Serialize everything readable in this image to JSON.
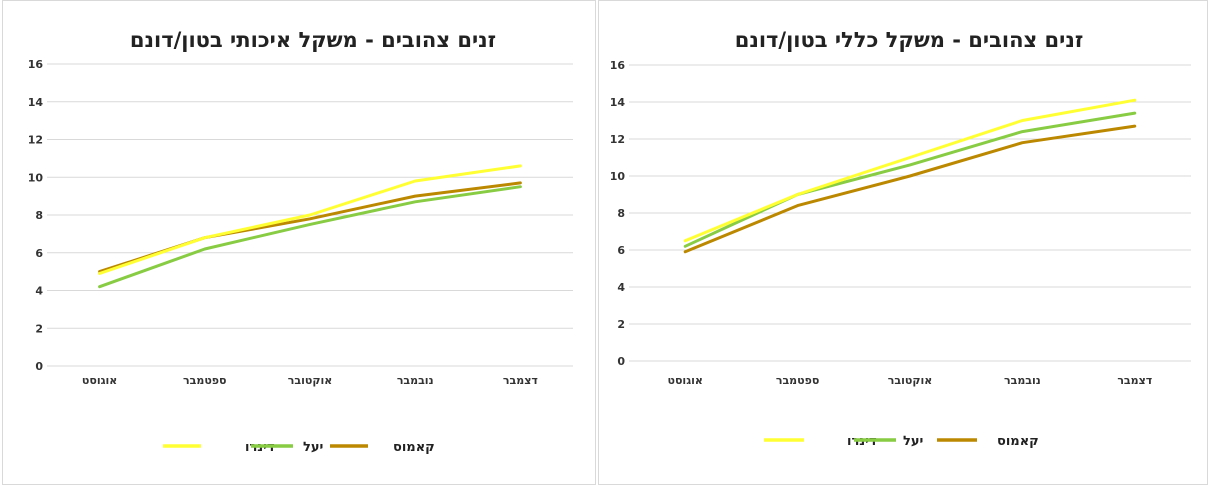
{
  "chart_data": [
    {
      "type": "line",
      "title": "זנים צהובים - משקל איכותי בטון/דונם",
      "categories": [
        "אוגוסט",
        "ספטמבר",
        "אוקטובר",
        "נובמבר",
        "דצמבר"
      ],
      "ylim": [
        0,
        16
      ],
      "yticks": [
        0,
        2,
        4,
        6,
        8,
        10,
        12,
        14,
        16
      ],
      "grid": true,
      "legend_position": "bottom",
      "series": [
        {
          "name": "דינרו",
          "color": "#ffff33",
          "values": [
            4.9,
            6.8,
            8.0,
            9.8,
            10.6
          ]
        },
        {
          "name": "יעל",
          "color": "#88cc44",
          "values": [
            4.2,
            6.2,
            7.5,
            8.7,
            9.5
          ]
        },
        {
          "name": "קאמוס",
          "color": "#bb8800",
          "values": [
            5.0,
            6.8,
            7.8,
            9.0,
            9.7
          ]
        }
      ]
    },
    {
      "type": "line",
      "title": "זנים צהובים - משקל כללי בטון/דונם",
      "categories": [
        "אוגוסט",
        "ספטמבר",
        "אוקטובר",
        "נובמבר",
        "דצמבר"
      ],
      "ylim": [
        0,
        16
      ],
      "yticks": [
        0,
        2,
        4,
        6,
        8,
        10,
        12,
        14,
        16
      ],
      "grid": true,
      "legend_position": "bottom",
      "series": [
        {
          "name": "דינרו",
          "color": "#ffff33",
          "values": [
            6.5,
            9.0,
            11.0,
            13.0,
            14.1
          ]
        },
        {
          "name": "יעל",
          "color": "#88cc44",
          "values": [
            6.2,
            9.0,
            10.6,
            12.4,
            13.4
          ]
        },
        {
          "name": "קאמוס",
          "color": "#bb8800",
          "values": [
            5.9,
            8.4,
            10.0,
            11.8,
            12.7
          ]
        }
      ]
    }
  ]
}
